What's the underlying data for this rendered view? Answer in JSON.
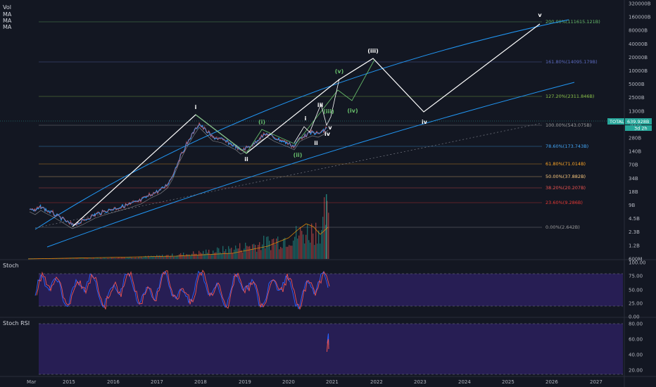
{
  "legend": {
    "vol": "Vol",
    "ma": [
      "MA",
      "MA",
      "MA"
    ]
  },
  "panels": {
    "stoch": "Stoch",
    "stoch_rsi": "Stoch RSI"
  },
  "price_badge": {
    "label": "TOTAL",
    "value": "639.928B",
    "countdown": "3d 2h",
    "color": "#26a69a"
  },
  "colors": {
    "background": "#131722",
    "channel": "#2196f3",
    "wave_main": "#ffffff",
    "wave_sub": "#66bb6a",
    "stoch_bg": "#2a1f5a",
    "k_line": "#2962ff",
    "d_line": "#ef5350"
  },
  "chart_data": [
    {
      "type": "line",
      "title": "",
      "x_ticks": [
        "Mar",
        "2015",
        "2016",
        "2017",
        "2018",
        "2019",
        "2020",
        "2021",
        "2022",
        "2023",
        "2024",
        "2025",
        "2026",
        "2027"
      ],
      "y_ticks": [
        "320000B",
        "160000B",
        "80000B",
        "40000B",
        "20000B",
        "10000B",
        "5000B",
        "2500B",
        "1300B",
        "560B",
        "280B",
        "140B",
        "70B",
        "34B",
        "18B",
        "9B",
        "4.5B",
        "2.3B",
        "1.2B",
        "600M"
      ],
      "y_scale": "log",
      "fib_levels": [
        {
          "label": "200.00%(111615.121B)",
          "color": "#66bb6a"
        },
        {
          "label": "161.80%(14095.179B)",
          "color": "#5c6bc0"
        },
        {
          "label": "127.20%(2311.846B)",
          "color": "#8bc34a"
        },
        {
          "label": "100.00%(543.075B)",
          "color": "#9e9e9e"
        },
        {
          "label": "78.60%(173.743B)",
          "color": "#42a5f5"
        },
        {
          "label": "61.80%(71.014B)",
          "color": "#ffa726"
        },
        {
          "label": "50.00%(37.882B)",
          "color": "#ffcc80"
        },
        {
          "label": "38.20%(20.207B)",
          "color": "#ef5350"
        },
        {
          "label": "23.60%(9.286B)",
          "color": "#e53935"
        },
        {
          "label": "0.00%(2.642B)",
          "color": "#9e9e9e"
        }
      ],
      "wave_labels_main": [
        "i",
        "ii",
        "iii",
        "iv",
        "v"
      ],
      "wave_labels_sub": [
        "(i)",
        "(ii)",
        "(iii)",
        "(iv)",
        "(v)"
      ],
      "wave_labels_minor": [
        "i",
        "ii",
        "iii",
        "iv",
        "v"
      ],
      "forecast_labels": [
        "(iii)",
        "iv",
        "v"
      ]
    },
    {
      "type": "line",
      "title": "Stoch",
      "y_ticks": [
        "100.00",
        "75.00",
        "50.00",
        "25.00",
        "0.00"
      ],
      "ylim": [
        0,
        100
      ]
    },
    {
      "type": "line",
      "title": "Stoch RSI",
      "y_ticks": [
        "80.00",
        "60.00",
        "40.00",
        "20.00"
      ],
      "ylim": [
        20,
        80
      ]
    }
  ]
}
